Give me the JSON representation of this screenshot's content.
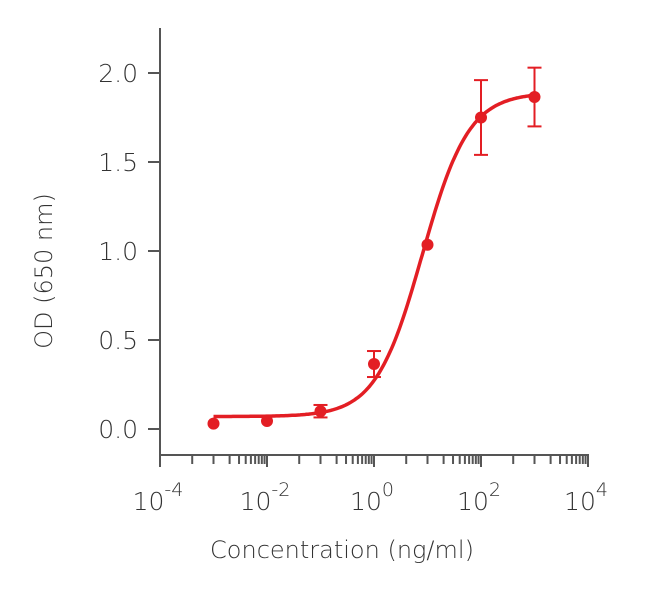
{
  "chart_data": {
    "type": "scatter",
    "title": "",
    "xlabel": "Concentration (ng/ml)",
    "ylabel": "OD (650 nm)",
    "x_scale": "log",
    "xlim": [
      0.0001,
      10000
    ],
    "ylim": [
      -0.14,
      2.25
    ],
    "x_ticks": [
      {
        "value": 0.0001,
        "base": "10",
        "exp": "-4"
      },
      {
        "value": 0.01,
        "base": "10",
        "exp": "-2"
      },
      {
        "value": 1,
        "base": "10",
        "exp": "0"
      },
      {
        "value": 100,
        "base": "10",
        "exp": "2"
      },
      {
        "value": 10000,
        "base": "10",
        "exp": "4"
      }
    ],
    "y_ticks": [
      {
        "value": 0,
        "label": "0.0"
      },
      {
        "value": 0.5,
        "label": "0.5"
      },
      {
        "value": 1,
        "label": "1.0"
      },
      {
        "value": 1.5,
        "label": "1.5"
      },
      {
        "value": 2,
        "label": "2.0"
      }
    ],
    "grid": false,
    "color": "#e31e24",
    "points": [
      {
        "x": 0.001,
        "y": 0.03
      },
      {
        "x": 0.01,
        "y": 0.045
      },
      {
        "x": 0.1,
        "y": 0.1,
        "err": 0.035
      },
      {
        "x": 1,
        "y": 0.365,
        "err": 0.073
      },
      {
        "x": 10,
        "y": 1.035
      },
      {
        "x": 100,
        "y": 1.75,
        "err": 0.21
      },
      {
        "x": 1000,
        "y": 1.865,
        "err": 0.165
      }
    ],
    "fit": {
      "model": "4PL",
      "bottom": 0.07,
      "top": 1.89,
      "ec50": 8,
      "hill": 1.0,
      "x_range": [
        0.001,
        1000
      ]
    }
  }
}
